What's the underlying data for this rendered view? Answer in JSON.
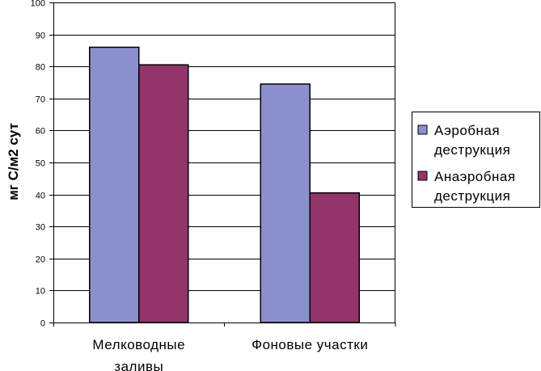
{
  "chart_data": {
    "type": "bar",
    "ylabel": "мг С/м2 сут",
    "ylim": [
      0,
      100
    ],
    "yticks": [
      0,
      10,
      20,
      30,
      40,
      50,
      60,
      70,
      80,
      90,
      100
    ],
    "grid": true,
    "legend_position": "right",
    "categories": [
      [
        "Мелководные",
        "заливы"
      ],
      [
        "Фоновые участки"
      ]
    ],
    "series": [
      {
        "name": [
          "Аэробная",
          "деструкция"
        ],
        "values": [
          86,
          74.5
        ],
        "color": "#8b8fcc"
      },
      {
        "name": [
          "Анаэробная",
          "деструкция"
        ],
        "values": [
          80.5,
          40.5
        ],
        "color": "#93346a"
      }
    ]
  }
}
